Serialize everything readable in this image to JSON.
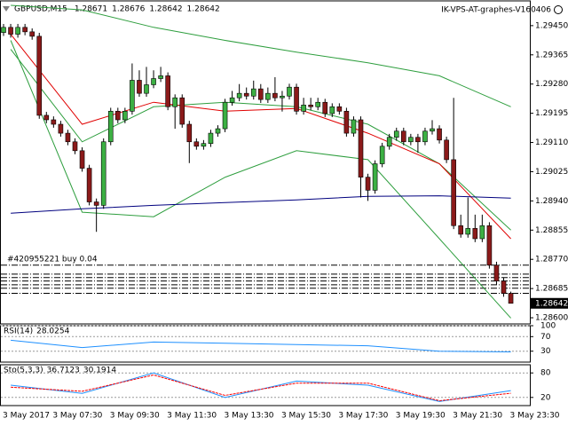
{
  "chart_data": {
    "type": "candlestick",
    "title": "GBPUSD,M15",
    "header_values": [
      1.28671,
      1.28676,
      1.28642,
      1.28642
    ],
    "watermark": "IK-VPS-AT-graphes-V160406",
    "categories": [
      "3 May 2017",
      null,
      null,
      null,
      null,
      null,
      null,
      "3 May 07:30",
      null,
      null,
      null,
      null,
      null,
      null,
      null,
      "3 May 09:30",
      null,
      null,
      null,
      null,
      null,
      null,
      null,
      "3 May 11:30",
      null,
      null,
      null,
      null,
      null,
      null,
      null,
      "3 May 13:30",
      null,
      null,
      null,
      null,
      null,
      null,
      null,
      "3 May 15:30",
      null,
      null,
      null,
      null,
      null,
      null,
      null,
      "3 May 17:30",
      null,
      null,
      null,
      null,
      null,
      null,
      null,
      "3 May 19:30",
      null,
      null,
      null,
      null,
      null,
      null,
      null,
      "3 May 21:30",
      null,
      null,
      null,
      null,
      null,
      null,
      null,
      "3 May 23:30"
    ],
    "open": [
      1.2943,
      1.29445,
      1.29425,
      1.29445,
      1.29432,
      1.29419,
      1.29189,
      1.29176,
      1.29163,
      1.29137,
      1.29112,
      1.29086,
      1.29035,
      1.28937,
      1.28927,
      1.29112,
      1.29201,
      1.29176,
      1.29201,
      1.29291,
      1.29253,
      1.29278,
      1.29296,
      1.29304,
      1.29214,
      1.2924,
      1.29163,
      1.29112,
      1.29099,
      1.29107,
      1.29137,
      1.2915,
      1.29227,
      1.2924,
      1.29253,
      1.29245,
      1.29266,
      1.29235,
      1.29253,
      1.2924,
      1.29245,
      1.29271,
      1.29201,
      1.29219,
      1.29214,
      1.29227,
      1.29194,
      1.29214,
      1.29201,
      1.29137,
      1.29176,
      1.29009,
      1.28971,
      1.29048,
      1.29099,
      1.29125,
      1.29143,
      1.29112,
      1.29125,
      1.29112,
      1.29143,
      1.2915,
      1.29117,
      1.2906,
      1.28868,
      1.28843,
      1.2886,
      1.2883,
      1.28868,
      1.28753,
      1.28707,
      1.28671
    ],
    "high": [
      1.29455,
      1.29455,
      1.29455,
      1.29455,
      1.29442,
      1.29429,
      1.29199,
      1.29186,
      1.29173,
      1.29147,
      1.29122,
      1.29096,
      1.29045,
      1.28947,
      1.29122,
      1.29211,
      1.29211,
      1.29211,
      1.2934,
      1.2932,
      1.2933,
      1.2932,
      1.2933,
      1.29314,
      1.2925,
      1.2925,
      1.29173,
      1.29122,
      1.29117,
      1.29147,
      1.2916,
      1.29237,
      1.2926,
      1.2928,
      1.2927,
      1.2929,
      1.2928,
      1.2927,
      1.293,
      1.2926,
      1.29281,
      1.29281,
      1.2924,
      1.2924,
      1.2924,
      1.29237,
      1.29224,
      1.29224,
      1.29211,
      1.29186,
      1.29186,
      1.29019,
      1.29058,
      1.29109,
      1.29135,
      1.29153,
      1.29153,
      1.29135,
      1.29135,
      1.29153,
      1.29175,
      1.2916,
      1.29127,
      1.2924,
      1.289,
      1.2895,
      1.289,
      1.289,
      1.28878,
      1.28763,
      1.28717,
      1.28676
    ],
    "low": [
      1.2942,
      1.29415,
      1.29415,
      1.29422,
      1.29409,
      1.29179,
      1.29166,
      1.29153,
      1.29127,
      1.29102,
      1.29076,
      1.29025,
      1.28927,
      1.2885,
      1.28917,
      1.29102,
      1.29166,
      1.29166,
      1.29191,
      1.29243,
      1.29243,
      1.29268,
      1.29286,
      1.29204,
      1.2915,
      1.29153,
      1.2905,
      1.29089,
      1.29089,
      1.29097,
      1.29127,
      1.2914,
      1.29217,
      1.2923,
      1.29235,
      1.29235,
      1.29225,
      1.29225,
      1.2923,
      1.292,
      1.29235,
      1.29191,
      1.29191,
      1.29204,
      1.29204,
      1.29184,
      1.29184,
      1.29191,
      1.29127,
      1.29127,
      1.2895,
      1.2894,
      1.28961,
      1.29038,
      1.29089,
      1.29115,
      1.29102,
      1.29102,
      1.2908,
      1.29102,
      1.29133,
      1.29107,
      1.2905,
      1.28858,
      1.28833,
      1.28833,
      1.2882,
      1.2882,
      1.28743,
      1.28697,
      1.28661,
      1.28642
    ],
    "close": [
      1.29445,
      1.29425,
      1.29445,
      1.29432,
      1.29419,
      1.29189,
      1.29176,
      1.29163,
      1.29137,
      1.29112,
      1.29086,
      1.29035,
      1.28937,
      1.28927,
      1.29112,
      1.29201,
      1.29176,
      1.29201,
      1.29291,
      1.29253,
      1.29278,
      1.29296,
      1.29304,
      1.29214,
      1.2924,
      1.29163,
      1.29112,
      1.29099,
      1.29107,
      1.29137,
      1.2915,
      1.29227,
      1.2924,
      1.29253,
      1.29245,
      1.29266,
      1.29235,
      1.29253,
      1.2924,
      1.29245,
      1.29271,
      1.29201,
      1.29219,
      1.29214,
      1.29227,
      1.29194,
      1.29214,
      1.29201,
      1.29137,
      1.29176,
      1.29009,
      1.28971,
      1.29048,
      1.29099,
      1.29125,
      1.29143,
      1.29112,
      1.29125,
      1.29112,
      1.29143,
      1.2915,
      1.29117,
      1.2906,
      1.28868,
      1.28843,
      1.2886,
      1.2883,
      1.28868,
      1.28753,
      1.28707,
      1.28671,
      1.28642
    ],
    "up_color": "#3cb043",
    "down_color": "#8b1a1a",
    "ylim": [
      1.28582,
      1.29522
    ],
    "yticks": [
      {
        "value": 1.2945,
        "label": "1.29450"
      },
      1.29365,
      {
        "value": 1.2928,
        "label": "1.29280"
      },
      1.29195,
      {
        "value": 1.2911,
        "label": "1.29110"
      },
      1.29025,
      {
        "value": 1.2894,
        "label": "1.28940"
      },
      1.28855,
      {
        "value": 1.2877,
        "label": "1.28770"
      },
      1.28685,
      {
        "value": 1.286,
        "label": "1.28600"
      }
    ],
    "current_price": 1.28642,
    "lines": [
      {
        "color": "#2e9e3e",
        "x": [
          1,
          11,
          21,
          31,
          41,
          51,
          61,
          71
        ],
        "values": [
          1.29509,
          1.29496,
          1.29445,
          1.29407,
          1.29373,
          1.29342,
          1.29304,
          1.29214
        ]
      },
      {
        "color": "#2e9e3e",
        "x": [
          1,
          11,
          21,
          31,
          41,
          51,
          61,
          71
        ],
        "values": [
          1.29381,
          1.29112,
          1.29214,
          1.29227,
          1.29214,
          1.29163,
          1.29048,
          1.28855
        ]
      },
      {
        "color": "#2e9e3e",
        "x": [
          1,
          11,
          21,
          31,
          41,
          51,
          61,
          71
        ],
        "values": [
          1.29407,
          1.28907,
          1.28894,
          1.29009,
          1.29086,
          1.2906,
          1.2883,
          1.28599
        ]
      },
      {
        "color": "#e00000",
        "x": [
          1,
          11,
          21,
          31,
          41,
          51,
          61,
          71
        ],
        "values": [
          1.29425,
          1.29163,
          1.29227,
          1.29201,
          1.29209,
          1.29137,
          1.29048,
          1.2883
        ]
      },
      {
        "color": "#00007f",
        "x": [
          1,
          11,
          21,
          31,
          41,
          51,
          61,
          71
        ],
        "values": [
          1.28904,
          1.28917,
          1.28927,
          1.28935,
          1.28943,
          1.28953,
          1.28955,
          1.28948
        ]
      }
    ],
    "orders": [
      {
        "price": 1.28753,
        "label": "#420955221 buy 0.04"
      },
      {
        "price": 1.28727
      },
      {
        "price": 1.28717
      },
      {
        "price": 1.28707
      },
      {
        "price": 1.28696
      },
      {
        "price": 1.28686
      },
      {
        "price": 1.28671
      }
    ],
    "indicators": [
      {
        "type": "line",
        "title": "RSI(14)",
        "ylim": [
          0,
          100
        ],
        "yticks": [
          100,
          70,
          30
        ],
        "series": [
          {
            "color": "#1e90ff",
            "x": [
              1,
              11,
              21,
              31,
              41,
              51,
              61,
              71
            ],
            "values": [
              60,
              40,
              55,
              52,
              48,
              45,
              30,
              28.0254
            ]
          }
        ]
      },
      {
        "type": "line",
        "title": "Sto(5,3,3)",
        "ylim": [
          0,
          100
        ],
        "yticks": [
          80,
          20
        ],
        "series": [
          {
            "color": "#1e90ff",
            "x": [
              1,
              11,
              21,
              31,
              41,
              51,
              61,
              71
            ],
            "values": [
              50,
              30,
              80,
              20,
              60,
              50,
              10,
              36.7123
            ]
          },
          {
            "color": "#ff0000",
            "x": [
              1,
              11,
              21,
              31,
              41,
              51,
              61,
              71
            ],
            "values": [
              45,
              35,
              75,
              25,
              55,
              55,
              12,
              30.1914
            ]
          }
        ]
      }
    ]
  }
}
